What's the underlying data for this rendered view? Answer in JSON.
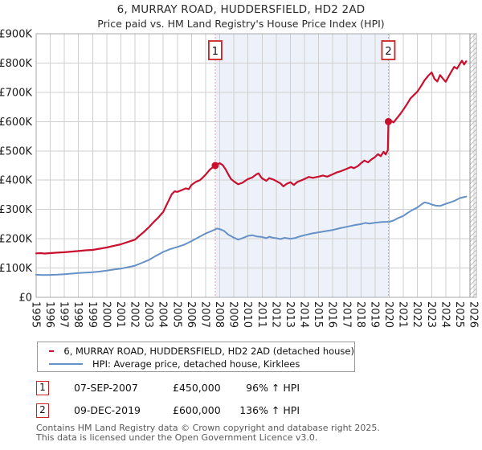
{
  "title": "6, MURRAY ROAD, HUDDERSFIELD, HD2 2AD",
  "subtitle": "Price paid vs. HM Land Registry's House Price Index (HPI)",
  "chart_data": {
    "type": "line",
    "x_range": [
      1995,
      2026
    ],
    "y_range": [
      0,
      900000
    ],
    "y_ticks": [
      "£0",
      "£100K",
      "£200K",
      "£300K",
      "£400K",
      "£500K",
      "£600K",
      "£700K",
      "£800K",
      "£900K"
    ],
    "grid": true,
    "legend_position": "below",
    "shaded_region": {
      "from": 2007.68,
      "to": 2019.94,
      "color": "#edf2fa"
    },
    "future_hatch_from": 2025.72,
    "markers": [
      {
        "label": "1",
        "x": 2007.68,
        "y": 450000
      },
      {
        "label": "2",
        "x": 2019.94,
        "y": 600000
      }
    ],
    "series": [
      {
        "name": "6, MURRAY ROAD, HUDDERSFIELD, HD2 2AD (detached house)",
        "color": "#c8102e",
        "width": 2.2,
        "points": [
          [
            1995.0,
            150000
          ],
          [
            1995.3,
            151000
          ],
          [
            1995.6,
            149500
          ],
          [
            1996.0,
            151000
          ],
          [
            1996.5,
            152500
          ],
          [
            1997.0,
            154000
          ],
          [
            1997.5,
            156000
          ],
          [
            1998.0,
            158000
          ],
          [
            1998.5,
            160500
          ],
          [
            1999.0,
            162000
          ],
          [
            1999.5,
            166000
          ],
          [
            2000.0,
            170000
          ],
          [
            2000.5,
            176000
          ],
          [
            2001.0,
            181000
          ],
          [
            2001.5,
            189000
          ],
          [
            2002.0,
            197000
          ],
          [
            2002.3,
            210000
          ],
          [
            2002.6,
            222000
          ],
          [
            2003.0,
            240000
          ],
          [
            2003.3,
            256000
          ],
          [
            2003.6,
            270000
          ],
          [
            2004.0,
            292000
          ],
          [
            2004.3,
            322000
          ],
          [
            2004.6,
            352000
          ],
          [
            2004.8,
            362000
          ],
          [
            2005.0,
            360000
          ],
          [
            2005.3,
            366000
          ],
          [
            2005.6,
            372000
          ],
          [
            2005.8,
            369000
          ],
          [
            2006.0,
            384000
          ],
          [
            2006.3,
            394000
          ],
          [
            2006.6,
            400000
          ],
          [
            2006.8,
            409000
          ],
          [
            2007.0,
            419000
          ],
          [
            2007.3,
            436000
          ],
          [
            2007.5,
            444000
          ],
          [
            2007.68,
            450000
          ],
          [
            2007.9,
            456000
          ],
          [
            2008.0,
            458000
          ],
          [
            2008.2,
            452000
          ],
          [
            2008.4,
            438000
          ],
          [
            2008.6,
            420000
          ],
          [
            2008.8,
            404000
          ],
          [
            2009.0,
            396000
          ],
          [
            2009.3,
            386000
          ],
          [
            2009.6,
            391000
          ],
          [
            2009.8,
            398000
          ],
          [
            2010.0,
            404000
          ],
          [
            2010.3,
            409000
          ],
          [
            2010.6,
            420000
          ],
          [
            2010.75,
            423000
          ],
          [
            2010.9,
            412000
          ],
          [
            2011.0,
            406000
          ],
          [
            2011.3,
            398000
          ],
          [
            2011.5,
            407000
          ],
          [
            2011.8,
            402000
          ],
          [
            2012.0,
            397000
          ],
          [
            2012.3,
            389000
          ],
          [
            2012.5,
            379000
          ],
          [
            2012.75,
            388000
          ],
          [
            2013.0,
            393000
          ],
          [
            2013.25,
            384000
          ],
          [
            2013.5,
            394000
          ],
          [
            2013.75,
            399000
          ],
          [
            2014.0,
            404000
          ],
          [
            2014.3,
            411000
          ],
          [
            2014.6,
            408000
          ],
          [
            2015.0,
            412000
          ],
          [
            2015.3,
            416000
          ],
          [
            2015.6,
            412000
          ],
          [
            2016.0,
            420000
          ],
          [
            2016.3,
            427000
          ],
          [
            2016.6,
            431000
          ],
          [
            2017.0,
            439000
          ],
          [
            2017.3,
            445000
          ],
          [
            2017.5,
            441000
          ],
          [
            2017.8,
            449000
          ],
          [
            2018.0,
            458000
          ],
          [
            2018.25,
            467000
          ],
          [
            2018.5,
            461000
          ],
          [
            2018.75,
            471000
          ],
          [
            2019.0,
            479000
          ],
          [
            2019.2,
            489000
          ],
          [
            2019.4,
            482000
          ],
          [
            2019.6,
            497000
          ],
          [
            2019.75,
            488000
          ],
          [
            2019.9,
            503000
          ],
          [
            2019.94,
            600000
          ],
          [
            2020.1,
            604000
          ],
          [
            2020.3,
            597000
          ],
          [
            2020.5,
            609000
          ],
          [
            2020.75,
            624000
          ],
          [
            2021.0,
            641000
          ],
          [
            2021.25,
            659000
          ],
          [
            2021.5,
            679000
          ],
          [
            2021.75,
            691000
          ],
          [
            2022.0,
            703000
          ],
          [
            2022.25,
            721000
          ],
          [
            2022.5,
            741000
          ],
          [
            2022.75,
            756000
          ],
          [
            2023.0,
            768000
          ],
          [
            2023.2,
            746000
          ],
          [
            2023.4,
            737000
          ],
          [
            2023.6,
            759000
          ],
          [
            2023.8,
            747000
          ],
          [
            2024.0,
            736000
          ],
          [
            2024.2,
            754000
          ],
          [
            2024.4,
            771000
          ],
          [
            2024.6,
            787000
          ],
          [
            2024.8,
            781000
          ],
          [
            2025.0,
            797000
          ],
          [
            2025.15,
            808000
          ],
          [
            2025.3,
            795000
          ],
          [
            2025.45,
            806000
          ]
        ]
      },
      {
        "name": "HPI: Average price, detached house, Kirklees",
        "color": "#6591c6",
        "width": 2,
        "points": [
          [
            1995.0,
            77000
          ],
          [
            1995.5,
            76000
          ],
          [
            1996.0,
            76500
          ],
          [
            1996.5,
            77500
          ],
          [
            1997.0,
            79000
          ],
          [
            1997.5,
            81000
          ],
          [
            1998.0,
            83000
          ],
          [
            1998.5,
            84500
          ],
          [
            1999.0,
            86000
          ],
          [
            1999.5,
            88000
          ],
          [
            2000.0,
            91000
          ],
          [
            2000.5,
            95000
          ],
          [
            2001.0,
            98000
          ],
          [
            2001.5,
            103000
          ],
          [
            2002.0,
            108000
          ],
          [
            2002.5,
            118000
          ],
          [
            2003.0,
            128000
          ],
          [
            2003.5,
            142000
          ],
          [
            2004.0,
            155000
          ],
          [
            2004.5,
            165000
          ],
          [
            2005.0,
            172000
          ],
          [
            2005.5,
            180000
          ],
          [
            2006.0,
            192000
          ],
          [
            2006.5,
            205000
          ],
          [
            2007.0,
            218000
          ],
          [
            2007.5,
            228000
          ],
          [
            2007.8,
            235000
          ],
          [
            2008.0,
            233000
          ],
          [
            2008.3,
            227000
          ],
          [
            2008.6,
            214000
          ],
          [
            2009.0,
            204000
          ],
          [
            2009.3,
            197000
          ],
          [
            2009.6,
            202000
          ],
          [
            2010.0,
            210000
          ],
          [
            2010.3,
            212000
          ],
          [
            2010.6,
            208000
          ],
          [
            2011.0,
            206000
          ],
          [
            2011.3,
            202000
          ],
          [
            2011.5,
            207000
          ],
          [
            2011.8,
            203000
          ],
          [
            2012.0,
            202000
          ],
          [
            2012.3,
            199000
          ],
          [
            2012.6,
            203000
          ],
          [
            2013.0,
            200000
          ],
          [
            2013.3,
            202000
          ],
          [
            2013.6,
            207000
          ],
          [
            2014.0,
            212000
          ],
          [
            2014.5,
            218000
          ],
          [
            2015.0,
            222000
          ],
          [
            2015.5,
            226000
          ],
          [
            2016.0,
            230000
          ],
          [
            2016.5,
            236000
          ],
          [
            2017.0,
            241000
          ],
          [
            2017.5,
            246000
          ],
          [
            2018.0,
            250000
          ],
          [
            2018.3,
            254000
          ],
          [
            2018.6,
            252000
          ],
          [
            2019.0,
            255000
          ],
          [
            2019.5,
            257000
          ],
          [
            2020.0,
            258000
          ],
          [
            2020.3,
            262000
          ],
          [
            2020.6,
            270000
          ],
          [
            2021.0,
            278000
          ],
          [
            2021.3,
            288000
          ],
          [
            2021.6,
            297000
          ],
          [
            2022.0,
            307000
          ],
          [
            2022.3,
            318000
          ],
          [
            2022.5,
            324000
          ],
          [
            2022.8,
            321000
          ],
          [
            2023.0,
            317000
          ],
          [
            2023.3,
            313000
          ],
          [
            2023.6,
            312000
          ],
          [
            2024.0,
            319000
          ],
          [
            2024.3,
            324000
          ],
          [
            2024.6,
            329000
          ],
          [
            2025.0,
            339000
          ],
          [
            2025.45,
            344000
          ]
        ]
      }
    ],
    "colors": {
      "grid": "#cfcfcf",
      "plot_border": "#a8a8a8",
      "dashed_marker_line": "#f09898",
      "marker_box_border": "#cc2222",
      "hatch_line": "#c0c0c0",
      "today_line": "#909090",
      "axis_text": "#1a1a1a"
    }
  },
  "legend": {
    "items": [
      {
        "label": "6, MURRAY ROAD, HUDDERSFIELD, HD2 2AD (detached house)",
        "color": "#c8102e"
      },
      {
        "label": "HPI: Average price, detached house, Kirklees",
        "color": "#6591c6"
      }
    ]
  },
  "annotations": [
    {
      "num": "1",
      "date": "07-SEP-2007",
      "price": "£450,000",
      "hpi": "96% ↑ HPI"
    },
    {
      "num": "2",
      "date": "09-DEC-2019",
      "price": "£600,000",
      "hpi": "136% ↑ HPI"
    }
  ],
  "footer": {
    "line1": "Contains HM Land Registry data © Crown copyright and database right 2025.",
    "line2": "This data is licensed under the Open Government Licence v3.0."
  }
}
